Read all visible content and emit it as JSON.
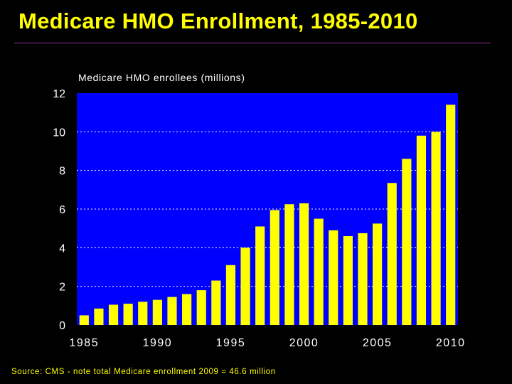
{
  "slide": {
    "title": "Medicare HMO Enrollment, 1985-2010",
    "source_note": "Source: CMS - note total Medicare enrollment 2009 = 46.6 million"
  },
  "colors": {
    "title": "#ffff00",
    "rule": "#993399",
    "plot_bg": "#0000ff",
    "bar": "#ffff00",
    "grid": "#ffffff",
    "axis_text": "#ffffff",
    "source_text": "#ffff00"
  },
  "chart_data": {
    "type": "bar",
    "title": "",
    "ylabel": "Medicare HMO enrollees (millions)",
    "xlabel": "",
    "ylim": [
      0,
      12
    ],
    "yticks": [
      0,
      2,
      4,
      6,
      8,
      10,
      12
    ],
    "grid": true,
    "categories": [
      "1985",
      "1986",
      "1987",
      "1988",
      "1989",
      "1990",
      "1991",
      "1992",
      "1993",
      "1994",
      "1995",
      "1996",
      "1997",
      "1998",
      "1999",
      "2000",
      "2001",
      "2002",
      "2003",
      "2004",
      "2005",
      "2006",
      "2007",
      "2008",
      "2009",
      "2010"
    ],
    "xtick_labels": [
      "1985",
      "1990",
      "1995",
      "2000",
      "2005",
      "2010"
    ],
    "values": [
      0.5,
      0.85,
      1.05,
      1.1,
      1.2,
      1.3,
      1.45,
      1.6,
      1.8,
      2.3,
      3.1,
      4.0,
      5.1,
      5.95,
      6.25,
      6.3,
      5.5,
      4.9,
      4.6,
      4.75,
      5.25,
      7.35,
      8.6,
      9.8,
      10.0,
      11.4
    ]
  }
}
